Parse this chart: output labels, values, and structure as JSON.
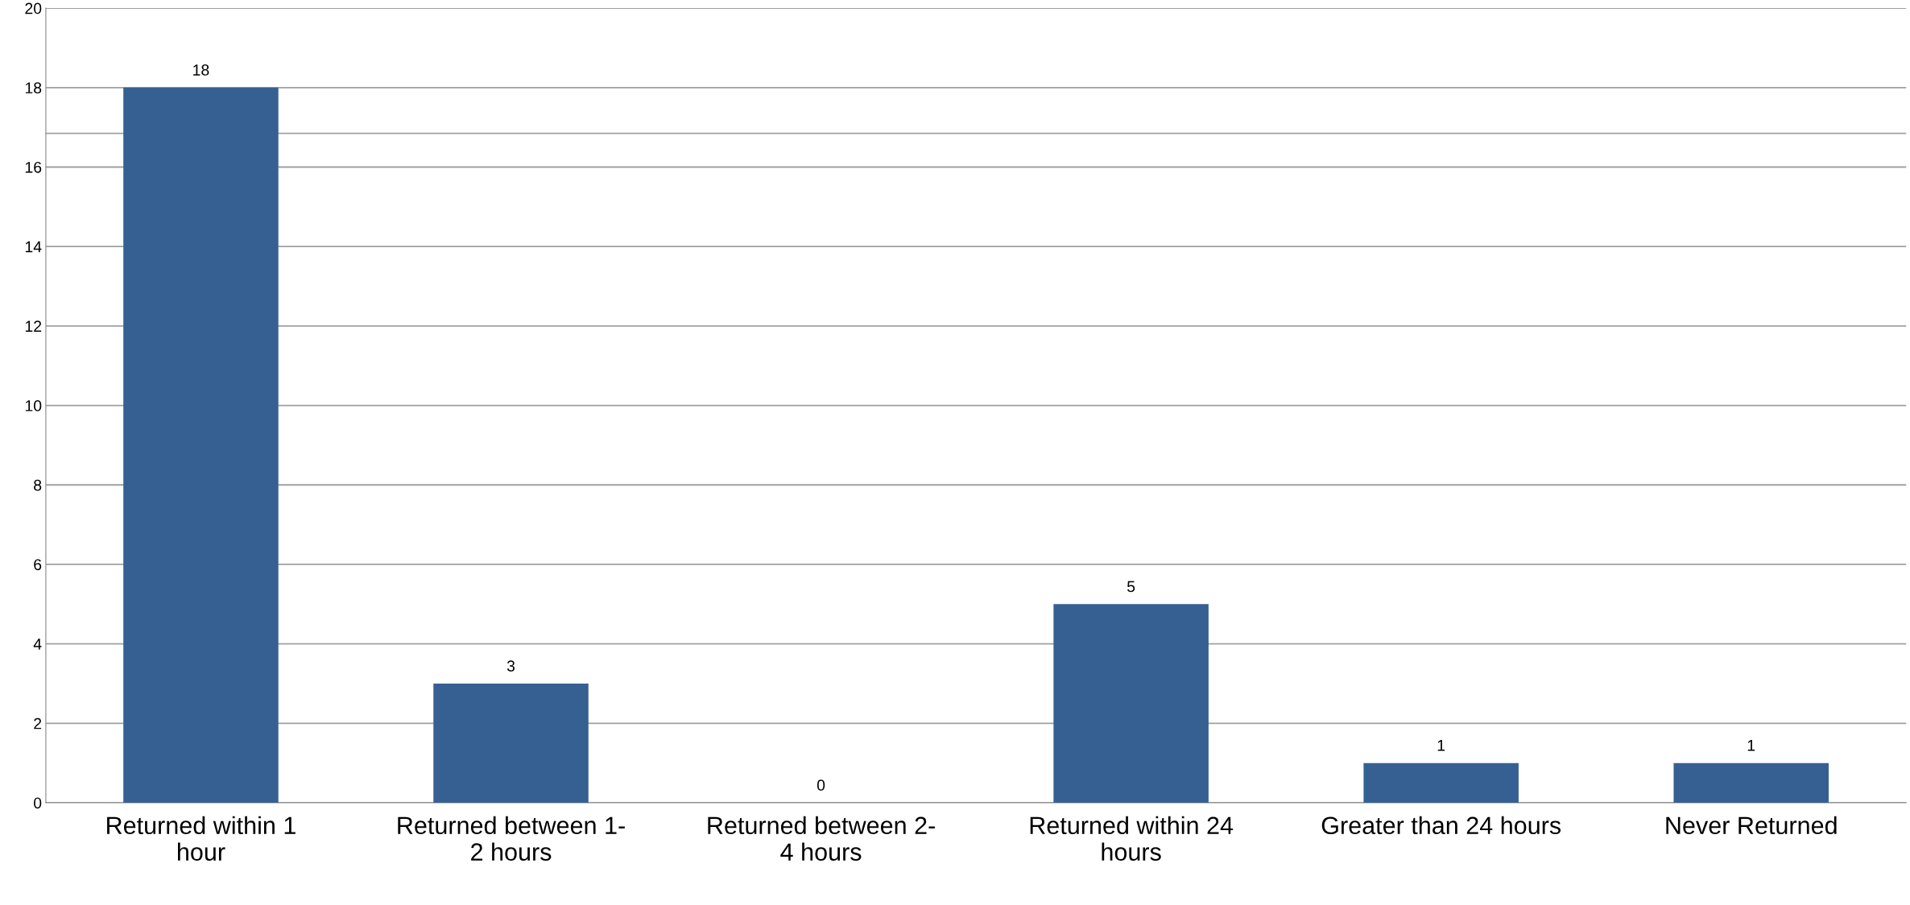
{
  "chart_data": {
    "type": "bar",
    "categories": [
      "Returned within 1\nhour",
      "Returned between 1-\n2 hours",
      "Returned between 2-\n4 hours",
      "Returned within 24\nhours",
      "Greater than 24 hours",
      "Never Returned"
    ],
    "values": [
      18,
      3,
      0,
      5,
      1,
      1
    ],
    "color": "#376092",
    "ylim": [
      0,
      20
    ],
    "yticks": [
      0,
      2,
      4,
      6,
      8,
      10,
      12,
      14,
      16,
      18,
      20
    ],
    "grid": "y",
    "data_labels": true,
    "ref_lines": [
      {
        "axis": "y",
        "value": 16.85,
        "color": "#a0a0a0"
      }
    ]
  }
}
